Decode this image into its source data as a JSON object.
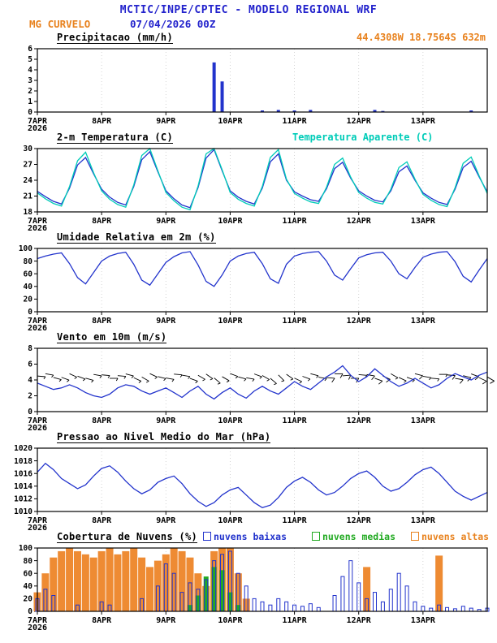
{
  "header": {
    "title": "MCTIC/INPE/CPTEC - MODELO REGIONAL WRF",
    "station": "MG CURVELO",
    "run": "07/04/2026 00Z",
    "location": "44.4308W 18.7564S 632m"
  },
  "colors": {
    "blue": "#2222cc",
    "orange": "#e8821e",
    "line_blue": "#2233cc",
    "cyan": "#00ccb8",
    "green": "#22aa22",
    "cloud_orange": "#ee8b33"
  },
  "x": {
    "total_hours": 168,
    "step_hours": 3,
    "tick_hours": [
      0,
      24,
      48,
      72,
      96,
      120,
      144
    ],
    "tick_labels": [
      "7APR",
      "8APR",
      "9APR",
      "10APR",
      "11APR",
      "12APR",
      "13APR"
    ],
    "year": "2026"
  },
  "chart_data": [
    {
      "type": "bar",
      "title": "Precipitacao (mm/h)",
      "ylim": [
        0,
        6
      ],
      "yticks": [
        0,
        1,
        2,
        3,
        4,
        5,
        6
      ],
      "series": [
        {
          "name": "precipitacao",
          "color": "#2233cc",
          "width": 4,
          "style": "fill",
          "values": [
            0,
            0,
            0,
            0,
            0,
            0,
            0,
            0,
            0,
            0,
            0,
            0,
            0,
            0,
            0,
            0,
            0,
            0,
            0,
            0,
            0,
            0,
            4.7,
            2.9,
            0,
            0,
            0,
            0,
            0.15,
            0,
            0.2,
            0,
            0.15,
            0,
            0.2,
            0,
            0,
            0,
            0,
            0,
            0,
            0,
            0.2,
            0.1,
            0,
            0,
            0,
            0,
            0,
            0,
            0,
            0,
            0,
            0,
            0.15,
            0,
            0
          ]
        }
      ]
    },
    {
      "type": "line",
      "title": "2-m Temperatura (C)",
      "ylim": [
        18,
        30
      ],
      "yticks": [
        18,
        21,
        24,
        27,
        30
      ],
      "series": [
        {
          "name": "2-m Temperatura (C)",
          "color": "#2233cc",
          "values": [
            21.9,
            20.9,
            20.0,
            19.5,
            22.5,
            26.9,
            28.3,
            25.2,
            22.3,
            20.8,
            19.8,
            19.3,
            22.8,
            27.9,
            29.4,
            25.6,
            22.0,
            20.5,
            19.3,
            18.8,
            22.6,
            28.2,
            29.8,
            25.8,
            22.0,
            20.8,
            20.0,
            19.5,
            22.5,
            27.5,
            29.0,
            24.0,
            21.8,
            21.0,
            20.3,
            20.0,
            22.4,
            26.2,
            27.4,
            24.4,
            22.0,
            21.0,
            20.2,
            19.9,
            22.0,
            25.6,
            26.7,
            24.0,
            21.6,
            20.6,
            19.8,
            19.4,
            22.3,
            26.4,
            27.6,
            24.6,
            21.8
          ]
        },
        {
          "name": "Temperatura Aparente (C)",
          "color": "#00ccb8",
          "values": [
            21.6,
            20.5,
            19.6,
            19.1,
            22.8,
            27.7,
            29.3,
            25.4,
            22.0,
            20.4,
            19.4,
            18.9,
            23.1,
            28.7,
            30.0,
            25.8,
            21.7,
            20.1,
            18.9,
            18.4,
            22.9,
            29.0,
            30.0,
            26.0,
            21.7,
            20.4,
            19.6,
            19.1,
            22.8,
            28.3,
            29.8,
            24.2,
            21.5,
            20.6,
            19.9,
            19.6,
            22.7,
            27.0,
            28.2,
            24.6,
            21.7,
            20.6,
            19.8,
            19.5,
            22.3,
            26.4,
            27.5,
            24.2,
            21.3,
            20.2,
            19.4,
            19.0,
            22.6,
            27.2,
            28.4,
            24.8,
            21.5
          ]
        }
      ],
      "legend_right": "Temperatura Aparente (C)"
    },
    {
      "type": "line",
      "title": "Umidade Relativa em 2m (%)",
      "ylim": [
        0,
        100
      ],
      "yticks": [
        0,
        20,
        40,
        60,
        80,
        100
      ],
      "series": [
        {
          "name": "umidade relativa",
          "color": "#2233cc",
          "values": [
            84,
            88,
            91,
            93,
            76,
            54,
            44,
            62,
            80,
            88,
            92,
            94,
            75,
            50,
            42,
            60,
            78,
            87,
            93,
            95,
            74,
            48,
            40,
            58,
            80,
            88,
            92,
            94,
            76,
            52,
            45,
            75,
            88,
            92,
            94,
            95,
            80,
            58,
            50,
            68,
            85,
            90,
            93,
            94,
            80,
            60,
            52,
            70,
            86,
            91,
            94,
            95,
            79,
            56,
            47,
            66,
            84
          ]
        }
      ]
    },
    {
      "type": "line",
      "title": "Vento em 10m (m/s)",
      "ylim": [
        0,
        8
      ],
      "yticks": [
        0,
        2,
        4,
        6,
        8
      ],
      "series": [
        {
          "name": "velocidade do vento",
          "color": "#2233cc",
          "values": [
            3.6,
            3.2,
            2.8,
            3.0,
            3.4,
            3.0,
            2.4,
            2.0,
            1.8,
            2.2,
            3.0,
            3.4,
            3.2,
            2.6,
            2.2,
            2.6,
            3.0,
            2.4,
            1.8,
            2.6,
            3.2,
            2.2,
            1.6,
            2.4,
            3.0,
            2.2,
            1.7,
            2.6,
            3.2,
            2.6,
            2.2,
            3.0,
            3.8,
            3.2,
            2.8,
            3.6,
            4.4,
            5.0,
            5.8,
            4.6,
            3.8,
            4.4,
            5.4,
            4.6,
            3.8,
            3.2,
            3.6,
            4.2,
            3.6,
            3.0,
            3.4,
            4.2,
            4.8,
            4.4,
            4.0,
            4.6,
            5.0
          ]
        }
      ],
      "barbs": {
        "y": 4.5,
        "directions": [
          95,
          100,
          105,
          110,
          115,
          110,
          105,
          100,
          95,
          90,
          95,
          105,
          115,
          120,
          115,
          105,
          100,
          95,
          100,
          110,
          120,
          125,
          130,
          120,
          110,
          105,
          100,
          110,
          120,
          130,
          135,
          125,
          115,
          110,
          105,
          100,
          95,
          90,
          85,
          90,
          95,
          100,
          110,
          115,
          120,
          115,
          110,
          105,
          100,
          95,
          90,
          95,
          100,
          105,
          110,
          115,
          120
        ]
      }
    },
    {
      "type": "line",
      "title": "Pressao ao Nivel Medio do Mar (hPa)",
      "ylim": [
        1010,
        1020
      ],
      "yticks": [
        1010,
        1012,
        1014,
        1016,
        1018,
        1020
      ],
      "series": [
        {
          "name": "pressao",
          "color": "#2233cc",
          "values": [
            1016.2,
            1017.6,
            1016.6,
            1015.2,
            1014.4,
            1013.6,
            1014.2,
            1015.6,
            1016.8,
            1017.2,
            1016.2,
            1014.8,
            1013.6,
            1012.8,
            1013.4,
            1014.6,
            1015.2,
            1015.6,
            1014.4,
            1012.8,
            1011.6,
            1010.8,
            1011.4,
            1012.6,
            1013.4,
            1013.8,
            1012.6,
            1011.4,
            1010.6,
            1011.0,
            1012.2,
            1013.8,
            1014.8,
            1015.4,
            1014.6,
            1013.4,
            1012.6,
            1013.0,
            1014.0,
            1015.2,
            1016.0,
            1016.4,
            1015.4,
            1014.0,
            1013.2,
            1013.6,
            1014.6,
            1015.8,
            1016.6,
            1017.0,
            1016.0,
            1014.6,
            1013.2,
            1012.4,
            1011.8,
            1012.4,
            1013.0
          ]
        }
      ]
    },
    {
      "type": "bar",
      "title": "Cobertura de Nuvens (%)",
      "ylim": [
        0,
        100
      ],
      "yticks": [
        0,
        20,
        40,
        60,
        80,
        100
      ],
      "legend": [
        {
          "label": "nuvens baixas",
          "color": "#2233cc"
        },
        {
          "label": "nuvens medias",
          "color": "#22aa22"
        },
        {
          "label": "nuvens altas",
          "color": "#e8821e"
        }
      ],
      "series": [
        {
          "name": "nuvens altas",
          "color": "#ee8b33",
          "width": 9,
          "style": "fill",
          "values": [
            30,
            60,
            85,
            95,
            100,
            95,
            90,
            85,
            95,
            100,
            90,
            95,
            100,
            85,
            70,
            80,
            90,
            100,
            95,
            85,
            60,
            40,
            95,
            100,
            100,
            60,
            20,
            0,
            0,
            0,
            0,
            0,
            0,
            0,
            0,
            0,
            0,
            0,
            0,
            0,
            0,
            70,
            0,
            0,
            0,
            0,
            0,
            0,
            0,
            0,
            88,
            0,
            0,
            0,
            0,
            0,
            0
          ]
        },
        {
          "name": "nuvens medias",
          "color": "#22aa22",
          "width": 6,
          "style": "fill",
          "values": [
            0,
            0,
            0,
            0,
            0,
            0,
            0,
            0,
            0,
            0,
            0,
            0,
            0,
            0,
            0,
            0,
            0,
            0,
            0,
            10,
            25,
            55,
            70,
            65,
            30,
            10,
            0,
            0,
            0,
            0,
            0,
            0,
            0,
            0,
            0,
            0,
            0,
            0,
            0,
            0,
            0,
            0,
            0,
            0,
            0,
            0,
            0,
            0,
            0,
            0,
            0,
            0,
            0,
            0,
            0,
            0,
            0
          ]
        },
        {
          "name": "nuvens baixas",
          "color": "#2233cc",
          "width": 4,
          "style": "outline",
          "values": [
            20,
            35,
            25,
            0,
            0,
            10,
            0,
            0,
            15,
            10,
            0,
            0,
            0,
            20,
            0,
            40,
            75,
            60,
            30,
            45,
            35,
            50,
            80,
            90,
            95,
            60,
            40,
            20,
            15,
            10,
            20,
            15,
            10,
            8,
            12,
            6,
            0,
            25,
            55,
            80,
            45,
            20,
            30,
            15,
            35,
            60,
            40,
            15,
            8,
            5,
            10,
            6,
            4,
            8,
            5,
            3,
            5
          ]
        }
      ]
    }
  ]
}
